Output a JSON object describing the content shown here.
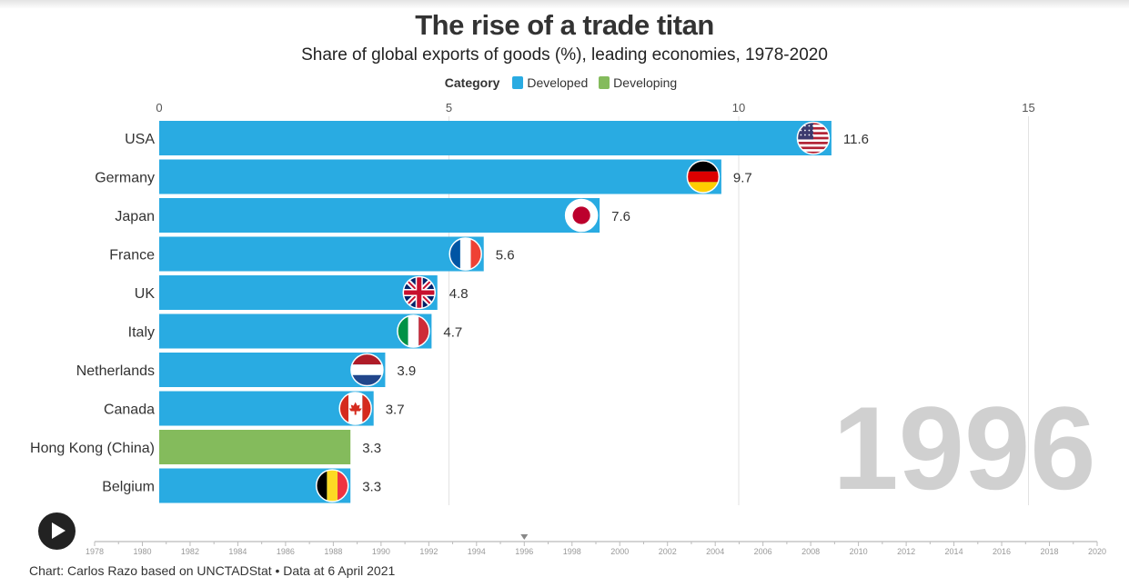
{
  "title": "The rise of a trade titan",
  "subtitle": "Share of global exports of goods (%), leading economies, 1978-2020",
  "legend": {
    "title": "Category",
    "items": [
      {
        "label": "Developed",
        "color": "#29abe2"
      },
      {
        "label": "Developing",
        "color": "#84bb5c"
      }
    ]
  },
  "chart_data": {
    "type": "bar",
    "orientation": "horizontal",
    "categories": [
      "USA",
      "Germany",
      "Japan",
      "France",
      "UK",
      "Italy",
      "Netherlands",
      "Canada",
      "Hong Kong (China)",
      "Belgium"
    ],
    "values": [
      11.6,
      9.7,
      7.6,
      5.6,
      4.8,
      4.7,
      3.9,
      3.7,
      3.3,
      3.3
    ],
    "value_labels": [
      "11.6",
      "9.7",
      "7.6",
      "5.6",
      "4.8",
      "4.7",
      "3.9",
      "3.7",
      "3.3",
      "3.3"
    ],
    "groups": [
      "Developed",
      "Developed",
      "Developed",
      "Developed",
      "Developed",
      "Developed",
      "Developed",
      "Developed",
      "Developing",
      "Developed"
    ],
    "flags": [
      "us-flag-icon",
      "germany-flag-icon",
      "japan-flag-icon",
      "france-flag-icon",
      "uk-flag-icon",
      "italy-flag-icon",
      "netherlands-flag-icon",
      "canada-flag-icon",
      "",
      "belgium-flag-icon"
    ],
    "xlim": [
      0,
      16.5
    ],
    "xticks": [
      0,
      5,
      10,
      15
    ],
    "xtick_labels": [
      "0",
      "5",
      "10",
      "15"
    ],
    "grid": true,
    "legend_position": "top-center",
    "current_year": "1996"
  },
  "timeline": {
    "start": 1978,
    "end": 2020,
    "current": 1996,
    "labels": [
      "1978",
      "1980",
      "1982",
      "1984",
      "1986",
      "1988",
      "1990",
      "1992",
      "1994",
      "1996",
      "1998",
      "2000",
      "2002",
      "2004",
      "2006",
      "2008",
      "2010",
      "2012",
      "2014",
      "2016",
      "2018",
      "2020"
    ]
  },
  "controls": {
    "play_icon": "play-icon"
  },
  "footer": "Chart: Carlos Razo based on UNCTADStat • Data at 6 April 2021"
}
